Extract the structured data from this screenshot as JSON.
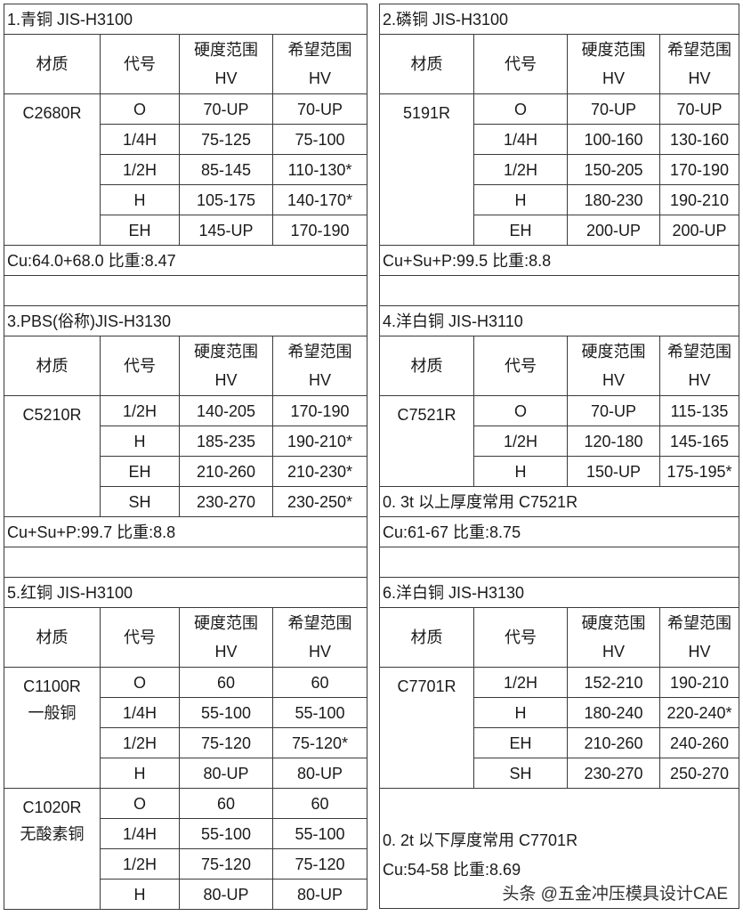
{
  "headers": {
    "material": "材质",
    "code": "代号",
    "hardness": [
      "硬度范围",
      "HV"
    ],
    "desired": [
      "希望范围",
      "HV"
    ]
  },
  "left": [
    {
      "title": "1.青铜 JIS-H3100",
      "groups": [
        {
          "material": [
            "C2680R"
          ],
          "rows": [
            [
              "O",
              "70-UP",
              "70-UP"
            ],
            [
              "1/4H",
              "75-125",
              "75-100"
            ],
            [
              "1/2H",
              "85-145",
              "110-130*"
            ],
            [
              "H",
              "105-175",
              "140-170*"
            ],
            [
              "EH",
              "145-UP",
              "170-190"
            ]
          ]
        }
      ],
      "notes": [
        "Cu:64.0+68.0  比重:8.47"
      ],
      "blank": true
    },
    {
      "title": "3.PBS(俗称)JIS-H3130",
      "groups": [
        {
          "material": [
            "C5210R"
          ],
          "rows": [
            [
              "1/2H",
              "140-205",
              "170-190"
            ],
            [
              "H",
              "185-235",
              "190-210*"
            ],
            [
              "EH",
              "210-260",
              "210-230*"
            ],
            [
              "SH",
              "230-270",
              "230-250*"
            ]
          ]
        }
      ],
      "notes": [
        "Cu+Su+P:99.7  比重:8.8"
      ],
      "blank": true
    },
    {
      "title": "5.红铜 JIS-H3100",
      "groups": [
        {
          "material": [
            "C1100R",
            "一般铜"
          ],
          "rows": [
            [
              "O",
              "60",
              "60"
            ],
            [
              "1/4H",
              "55-100",
              "55-100"
            ],
            [
              "1/2H",
              "75-120",
              "75-120*"
            ],
            [
              "H",
              "80-UP",
              "80-UP"
            ]
          ]
        },
        {
          "material": [
            "C1020R",
            "无酸素铜"
          ],
          "rows": [
            [
              "O",
              "60",
              "60"
            ],
            [
              "1/4H",
              "55-100",
              "55-100"
            ],
            [
              "1/2H",
              "75-120",
              "75-120"
            ],
            [
              "H",
              "80-UP",
              "80-UP"
            ]
          ]
        }
      ],
      "notes": [],
      "blank": false
    }
  ],
  "right": [
    {
      "title": "2.磷铜 JIS-H3100",
      "groups": [
        {
          "material": [
            "5191R"
          ],
          "rows": [
            [
              "O",
              "70-UP",
              "70-UP"
            ],
            [
              "1/4H",
              "100-160",
              "130-160"
            ],
            [
              "1/2H",
              "150-205",
              "170-190"
            ],
            [
              "H",
              "180-230",
              "190-210"
            ],
            [
              "EH",
              "200-UP",
              "200-UP"
            ]
          ]
        }
      ],
      "notes": [
        "Cu+Su+P:99.5  比重:8.8"
      ],
      "blank": true
    },
    {
      "title": "4.洋白铜 JIS-H3110",
      "groups": [
        {
          "material": [
            "C7521R"
          ],
          "rows": [
            [
              "O",
              "70-UP",
              "115-135"
            ],
            [
              "1/2H",
              "120-180",
              "145-165"
            ],
            [
              "H",
              "150-UP",
              "175-195*"
            ]
          ]
        }
      ],
      "notes": [
        "0.  3t 以上厚度常用 C7521R",
        "Cu:61-67  比重:8.75"
      ],
      "blank": true
    },
    {
      "title": "6.洋白铜 JIS-H3130",
      "groups": [
        {
          "material": [
            "C7701R"
          ],
          "rows": [
            [
              "1/2H",
              "152-210",
              "190-210"
            ],
            [
              "H",
              "180-240",
              "220-240*"
            ],
            [
              "EH",
              "210-260",
              "240-260"
            ],
            [
              "SH",
              "230-270",
              "250-270"
            ]
          ]
        }
      ],
      "box": [
        "0.  2t 以下厚度常用 C7701R",
        "Cu:54-58  比重:8.69"
      ],
      "watermark": "头条 @五金冲压模具设计CAE",
      "blank": false
    }
  ]
}
